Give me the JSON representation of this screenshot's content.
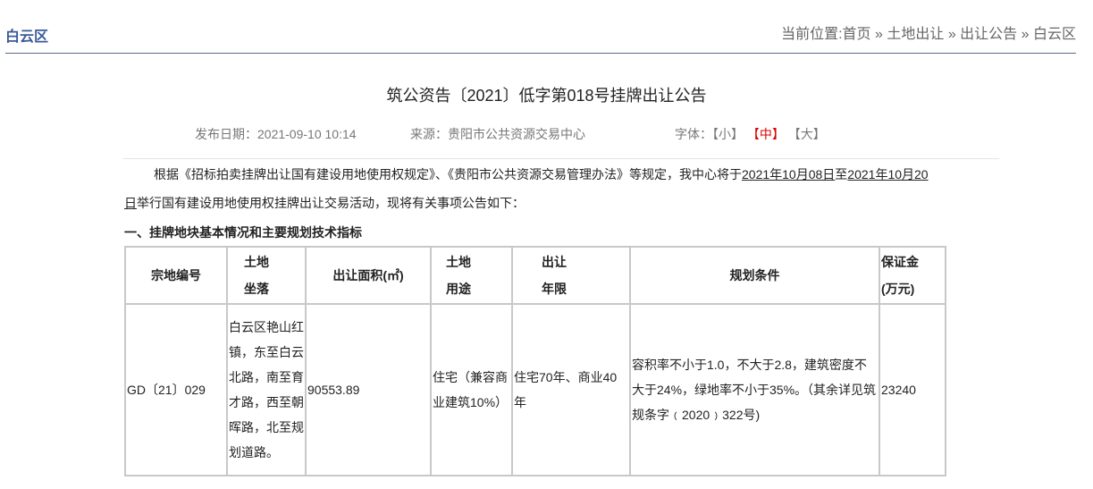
{
  "header": {
    "district": "白云区",
    "breadcrumb_prefix": "当前位置:",
    "breadcrumb": [
      "首页",
      "土地出让",
      "出让公告",
      "白云区"
    ],
    "separator": " » "
  },
  "article": {
    "title": "筑公资告〔2021〕低字第018号挂牌出让公告",
    "date": "发布日期：2021-09-10 10:14",
    "source": "来源：贵阳市公共资源交易中心",
    "font_label": "字体：",
    "font_small": "【小】",
    "font_medium": "【中】",
    "font_large": "【大】",
    "intro_a": "根据《招标拍卖挂牌出让国有建设用地使用权规定》、《贵阳市公共资源交易管理办法》等规定，我中心将于",
    "date_from": "2021年10月08日",
    "to": "至",
    "date_to_a": "2021年10月20",
    "date_to_b": "日",
    "intro_b": "举行国有建设用地使用权挂牌出让交易活动，现将有关事项公告如下：",
    "section1": "一、挂牌地块基本情况和主要规划技术指标"
  },
  "table": {
    "headers": [
      [
        "宗地编号"
      ],
      [
        "土地",
        "坐落"
      ],
      [
        "出让面积(㎡)"
      ],
      [
        "土地",
        "用途"
      ],
      [
        "出让",
        "年限"
      ],
      [
        "规划条件"
      ],
      [
        "保证金",
        "(万元)"
      ]
    ],
    "rows": [
      [
        "GD〔21〕029",
        "白云区艳山红镇，东至白云北路，南至育才路，西至朝晖路，北至规划道路。",
        "90553.89",
        "住宅（兼容商业建筑10%）",
        "住宅70年、商业40年",
        "容积率不小于1.0，不大于2.8，建筑密度不大于24%，绿地率不小于35%。（其余详见筑规条字﹙2020﹚322号)",
        "23240"
      ]
    ]
  },
  "colors": {
    "accent": "#3a5a9a",
    "active_font": "#dd0000"
  }
}
